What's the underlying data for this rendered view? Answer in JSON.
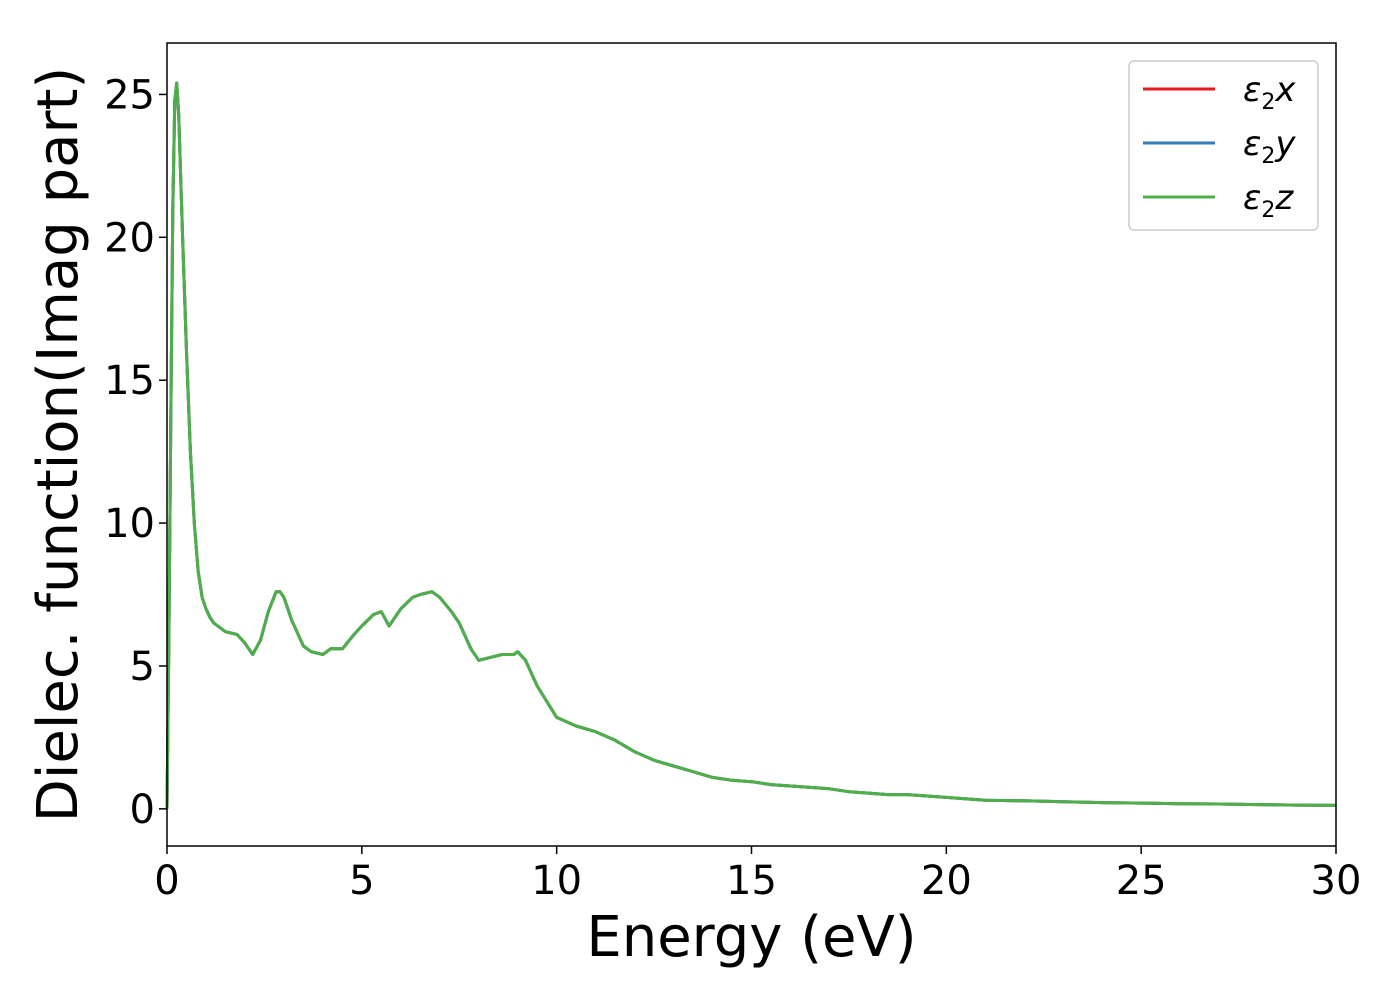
{
  "chart_data": {
    "type": "line",
    "xlabel": "Energy (eV)",
    "ylabel": "Dielec. function(Imag part)",
    "xlim": [
      0,
      30
    ],
    "ylim": [
      -1.3,
      26.8
    ],
    "xticks": [
      0,
      5,
      10,
      15,
      20,
      25,
      30
    ],
    "yticks": [
      0,
      5,
      10,
      15,
      20,
      25
    ],
    "grid": false,
    "legend_position": "top-right",
    "series": [
      {
        "name": "ε2x",
        "legend_base": "ε",
        "legend_sub": "2",
        "legend_tail": "x",
        "color": "#e41a1c",
        "x": [
          0,
          0.05,
          0.1,
          0.15,
          0.2,
          0.25,
          0.3,
          0.4,
          0.5,
          0.6,
          0.7,
          0.8,
          0.9,
          1.0,
          1.1,
          1.2,
          1.5,
          1.8,
          2.0,
          2.2,
          2.4,
          2.6,
          2.8,
          2.9,
          3.0,
          3.2,
          3.5,
          3.7,
          4.0,
          4.2,
          4.5,
          4.8,
          5.0,
          5.3,
          5.5,
          5.7,
          6.0,
          6.3,
          6.5,
          6.8,
          7.0,
          7.3,
          7.5,
          7.8,
          8.0,
          8.3,
          8.6,
          8.9,
          9.0,
          9.2,
          9.5,
          10.0,
          10.5,
          11.0,
          11.5,
          12.0,
          12.5,
          13.0,
          13.5,
          14.0,
          14.5,
          15.0,
          15.5,
          16.0,
          16.5,
          17.0,
          17.5,
          18.0,
          18.5,
          19.0,
          19.5,
          20.0,
          21.0,
          22.0,
          23.0,
          24.0,
          25.0,
          26.0,
          27.0,
          28.0,
          29.0,
          30.0
        ],
        "y": [
          0,
          6.0,
          14.0,
          21.0,
          24.8,
          25.4,
          24.3,
          20.0,
          16.0,
          12.5,
          10.0,
          8.3,
          7.4,
          7.0,
          6.7,
          6.5,
          6.2,
          6.1,
          5.8,
          5.4,
          5.9,
          6.9,
          7.6,
          7.6,
          7.4,
          6.6,
          5.7,
          5.5,
          5.4,
          5.6,
          5.6,
          6.1,
          6.4,
          6.8,
          6.9,
          6.4,
          7.0,
          7.4,
          7.5,
          7.6,
          7.4,
          6.9,
          6.5,
          5.6,
          5.2,
          5.3,
          5.4,
          5.4,
          5.5,
          5.2,
          4.3,
          3.2,
          2.9,
          2.7,
          2.4,
          2.0,
          1.7,
          1.5,
          1.3,
          1.1,
          1.0,
          0.95,
          0.85,
          0.8,
          0.75,
          0.7,
          0.6,
          0.55,
          0.5,
          0.5,
          0.45,
          0.4,
          0.3,
          0.28,
          0.25,
          0.22,
          0.2,
          0.18,
          0.17,
          0.15,
          0.13,
          0.12
        ]
      },
      {
        "name": "ε2y",
        "legend_base": "ε",
        "legend_sub": "2",
        "legend_tail": "y",
        "color": "#377eb8",
        "x": [
          0,
          0.05,
          0.1,
          0.15,
          0.2,
          0.25,
          0.3,
          0.4,
          0.5,
          0.6,
          0.7,
          0.8,
          0.9,
          1.0,
          1.1,
          1.2,
          1.5,
          1.8,
          2.0,
          2.2,
          2.4,
          2.6,
          2.8,
          2.9,
          3.0,
          3.2,
          3.5,
          3.7,
          4.0,
          4.2,
          4.5,
          4.8,
          5.0,
          5.3,
          5.5,
          5.7,
          6.0,
          6.3,
          6.5,
          6.8,
          7.0,
          7.3,
          7.5,
          7.8,
          8.0,
          8.3,
          8.6,
          8.9,
          9.0,
          9.2,
          9.5,
          10.0,
          10.5,
          11.0,
          11.5,
          12.0,
          12.5,
          13.0,
          13.5,
          14.0,
          14.5,
          15.0,
          15.5,
          16.0,
          16.5,
          17.0,
          17.5,
          18.0,
          18.5,
          19.0,
          19.5,
          20.0,
          21.0,
          22.0,
          23.0,
          24.0,
          25.0,
          26.0,
          27.0,
          28.0,
          29.0,
          30.0
        ],
        "y": [
          0,
          6.0,
          14.0,
          21.0,
          24.8,
          25.4,
          24.3,
          20.0,
          16.0,
          12.5,
          10.0,
          8.3,
          7.4,
          7.0,
          6.7,
          6.5,
          6.2,
          6.1,
          5.8,
          5.4,
          5.9,
          6.9,
          7.6,
          7.6,
          7.4,
          6.6,
          5.7,
          5.5,
          5.4,
          5.6,
          5.6,
          6.1,
          6.4,
          6.8,
          6.9,
          6.4,
          7.0,
          7.4,
          7.5,
          7.6,
          7.4,
          6.9,
          6.5,
          5.6,
          5.2,
          5.3,
          5.4,
          5.4,
          5.5,
          5.2,
          4.3,
          3.2,
          2.9,
          2.7,
          2.4,
          2.0,
          1.7,
          1.5,
          1.3,
          1.1,
          1.0,
          0.95,
          0.85,
          0.8,
          0.75,
          0.7,
          0.6,
          0.55,
          0.5,
          0.5,
          0.45,
          0.4,
          0.3,
          0.28,
          0.25,
          0.22,
          0.2,
          0.18,
          0.17,
          0.15,
          0.13,
          0.12
        ]
      },
      {
        "name": "ε2z",
        "legend_base": "ε",
        "legend_sub": "2",
        "legend_tail": "z",
        "color": "#4daf4a",
        "x": [
          0,
          0.05,
          0.1,
          0.15,
          0.2,
          0.25,
          0.3,
          0.4,
          0.5,
          0.6,
          0.7,
          0.8,
          0.9,
          1.0,
          1.1,
          1.2,
          1.5,
          1.8,
          2.0,
          2.2,
          2.4,
          2.6,
          2.8,
          2.9,
          3.0,
          3.2,
          3.5,
          3.7,
          4.0,
          4.2,
          4.5,
          4.8,
          5.0,
          5.3,
          5.5,
          5.7,
          6.0,
          6.3,
          6.5,
          6.8,
          7.0,
          7.3,
          7.5,
          7.8,
          8.0,
          8.3,
          8.6,
          8.9,
          9.0,
          9.2,
          9.5,
          10.0,
          10.5,
          11.0,
          11.5,
          12.0,
          12.5,
          13.0,
          13.5,
          14.0,
          14.5,
          15.0,
          15.5,
          16.0,
          16.5,
          17.0,
          17.5,
          18.0,
          18.5,
          19.0,
          19.5,
          20.0,
          21.0,
          22.0,
          23.0,
          24.0,
          25.0,
          26.0,
          27.0,
          28.0,
          29.0,
          30.0
        ],
        "y": [
          0,
          6.0,
          14.0,
          21.0,
          24.8,
          25.4,
          24.3,
          20.0,
          16.0,
          12.5,
          10.0,
          8.3,
          7.4,
          7.0,
          6.7,
          6.5,
          6.2,
          6.1,
          5.8,
          5.4,
          5.9,
          6.9,
          7.6,
          7.6,
          7.4,
          6.6,
          5.7,
          5.5,
          5.4,
          5.6,
          5.6,
          6.1,
          6.4,
          6.8,
          6.9,
          6.4,
          7.0,
          7.4,
          7.5,
          7.6,
          7.4,
          6.9,
          6.5,
          5.6,
          5.2,
          5.3,
          5.4,
          5.4,
          5.5,
          5.2,
          4.3,
          3.2,
          2.9,
          2.7,
          2.4,
          2.0,
          1.7,
          1.5,
          1.3,
          1.1,
          1.0,
          0.95,
          0.85,
          0.8,
          0.75,
          0.7,
          0.6,
          0.55,
          0.5,
          0.5,
          0.45,
          0.4,
          0.3,
          0.28,
          0.25,
          0.22,
          0.2,
          0.18,
          0.17,
          0.15,
          0.13,
          0.12
        ]
      }
    ]
  }
}
